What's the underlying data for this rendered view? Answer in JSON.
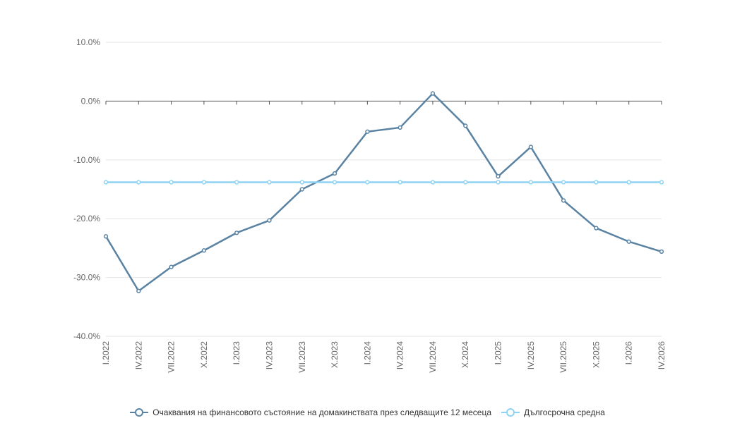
{
  "chart_data": {
    "type": "line",
    "categories": [
      "I.2022",
      "IV.2022",
      "VII.2022",
      "X.2022",
      "I.2023",
      "IV.2023",
      "VII.2023",
      "X.2023",
      "I.2024",
      "IV.2024",
      "VII.2024",
      "X.2024",
      "I.2025",
      "IV.2025",
      "VII.2025",
      "X.2025",
      "I.2026",
      "IV.2026"
    ],
    "series": [
      {
        "name": "Очаквания на финансовото състояние на домакинствата през следващите 12 месеца",
        "color": "#5a83a3",
        "values": [
          -23.0,
          -32.3,
          -28.2,
          -25.4,
          -22.4,
          -20.3,
          -15.0,
          -12.3,
          -5.2,
          -4.5,
          1.3,
          -4.2,
          -12.8,
          -7.8,
          -16.9,
          -21.6,
          -23.9,
          -25.6
        ]
      },
      {
        "name": "Дългосрочна средна",
        "color": "#8fd3f4",
        "values": [
          -13.8,
          -13.8,
          -13.8,
          -13.8,
          -13.8,
          -13.8,
          -13.8,
          -13.8,
          -13.8,
          -13.8,
          -13.8,
          -13.8,
          -13.8,
          -13.8,
          -13.8,
          -13.8,
          -13.8,
          -13.8
        ]
      }
    ],
    "yticks": [
      "10.0%",
      "0.0%",
      "-10.0%",
      "-20.0%",
      "-30.0%",
      "-40.0%"
    ],
    "ylim": [
      -40,
      10
    ],
    "grid": true,
    "legend_position": "bottom"
  }
}
